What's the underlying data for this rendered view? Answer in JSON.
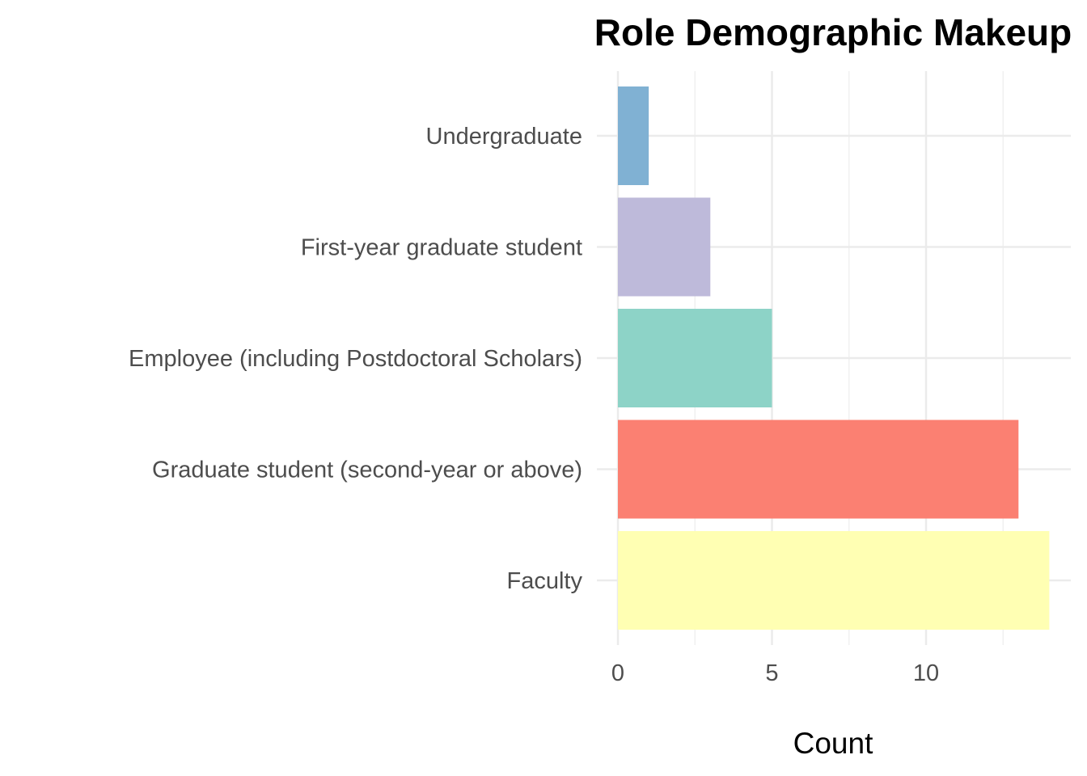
{
  "chart_data": {
    "type": "bar",
    "orientation": "horizontal",
    "title": "Role Demographic Makeup",
    "xlabel": "Count",
    "ylabel": "",
    "categories": [
      "Undergraduate",
      "First-year graduate student",
      "Employee (including Postdoctoral Scholars)",
      "Graduate student (second-year or above)",
      "Faculty"
    ],
    "values": [
      1,
      3,
      5,
      13,
      14
    ],
    "colors": [
      "#80b1d3",
      "#bebada",
      "#8dd3c7",
      "#fb8072",
      "#ffffb3"
    ],
    "x_ticks": [
      0,
      5,
      10
    ],
    "xlim": [
      0,
      14
    ],
    "grid": true,
    "legend": "none"
  }
}
